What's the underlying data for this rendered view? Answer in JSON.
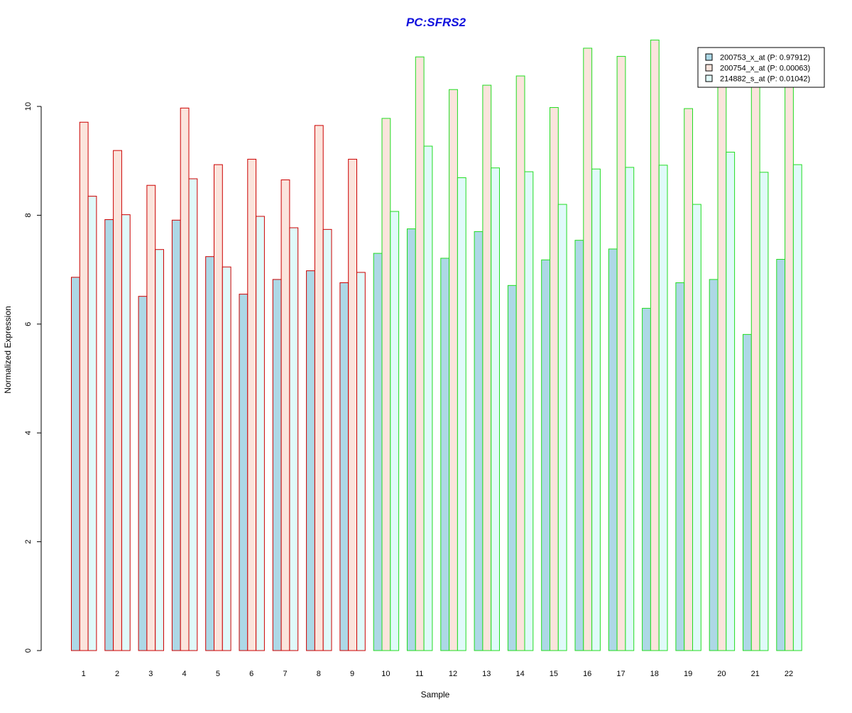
{
  "chart_data": {
    "type": "bar",
    "title": "PC:SFRS2",
    "xlabel": "Sample",
    "ylabel": "Normalized Expression",
    "ylim": [
      0,
      11.3
    ],
    "yticks": [
      0,
      2,
      4,
      6,
      8,
      10
    ],
    "grid": false,
    "legend_position": "top-right",
    "categories": [
      "1",
      "2",
      "3",
      "4",
      "5",
      "6",
      "7",
      "8",
      "9",
      "10",
      "11",
      "12",
      "13",
      "14",
      "15",
      "16",
      "17",
      "18",
      "19",
      "20",
      "21",
      "22"
    ],
    "group_border_colors": [
      "#cc0000",
      "#cc0000",
      "#cc0000",
      "#cc0000",
      "#cc0000",
      "#cc0000",
      "#cc0000",
      "#cc0000",
      "#cc0000",
      "#22dd22",
      "#22dd22",
      "#22dd22",
      "#22dd22",
      "#22dd22",
      "#22dd22",
      "#22dd22",
      "#22dd22",
      "#22dd22",
      "#22dd22",
      "#22dd22",
      "#22dd22",
      "#22dd22"
    ],
    "series": [
      {
        "name": "200753_x_at (P: 0.97912)",
        "fill": "#add8e6",
        "values": [
          6.86,
          7.92,
          6.51,
          7.91,
          7.24,
          6.55,
          6.82,
          6.98,
          6.76,
          7.3,
          7.75,
          7.21,
          7.7,
          6.71,
          7.18,
          7.54,
          7.38,
          6.29,
          6.76,
          6.82,
          5.81,
          7.19
        ]
      },
      {
        "name": "200754_x_at (P: 0.00063)",
        "fill": "#fbe4dc",
        "values": [
          9.71,
          9.19,
          8.55,
          9.97,
          8.93,
          9.03,
          8.65,
          9.65,
          9.03,
          9.78,
          10.91,
          10.31,
          10.39,
          10.56,
          9.98,
          11.07,
          10.92,
          11.22,
          9.96,
          10.4,
          10.4,
          10.4
        ]
      },
      {
        "name": "214882_s_at (P: 0.01042)",
        "fill": "#e0fafa",
        "values": [
          8.35,
          8.01,
          7.37,
          8.67,
          7.05,
          7.98,
          7.77,
          7.74,
          6.95,
          8.07,
          9.27,
          8.69,
          8.87,
          8.8,
          8.2,
          8.85,
          8.88,
          8.92,
          8.2,
          9.16,
          8.79,
          8.93
        ]
      }
    ],
    "colors": {
      "title": "#1010dd",
      "axis": "#000000",
      "legend_border": "#000000"
    }
  }
}
